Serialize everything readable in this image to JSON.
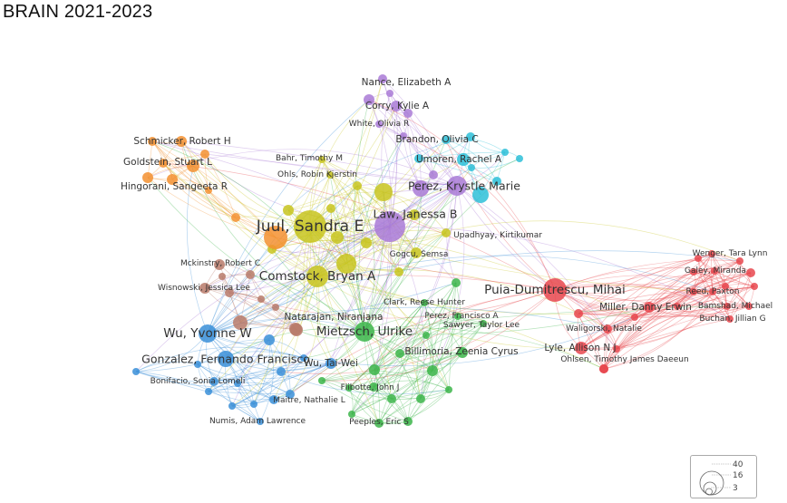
{
  "title": "BRAIN 2021-2023",
  "clusters": {
    "red": "#e8474d",
    "blue": "#3a8fd8",
    "green": "#3cb54a",
    "yellow": "#c8c41f",
    "purple": "#a97ad6",
    "cyan": "#2ec0d8",
    "orange": "#f39130",
    "brown": "#b97a6a"
  },
  "labels": [
    {
      "id": "juul",
      "text": "Juul, Sandra E",
      "cluster": "yellow",
      "size": "xl"
    },
    {
      "id": "puia",
      "text": "Puia-Dumitrescu, Mihai",
      "cluster": "red",
      "size": "lg"
    },
    {
      "id": "comstock",
      "text": "Comstock, Bryan A",
      "cluster": "yellow",
      "size": "lg"
    },
    {
      "id": "mietzsch",
      "text": "Mietzsch, Ulrike",
      "cluster": "green",
      "size": "lg"
    },
    {
      "id": "wu_yvonne",
      "text": "Wu, Yvonne W",
      "cluster": "blue",
      "size": "lg"
    },
    {
      "id": "gonzalez",
      "text": "Gonzalez, Fernando Francisco",
      "cluster": "blue",
      "size": "md"
    },
    {
      "id": "perez_krystle",
      "text": "Perez, Krystle Marie",
      "cluster": "purple",
      "size": "md"
    },
    {
      "id": "law",
      "text": "Law, Janessa B",
      "cluster": "purple",
      "size": "md"
    },
    {
      "id": "nance",
      "text": "Nance, Elizabeth A",
      "cluster": "purple",
      "size": "sm"
    },
    {
      "id": "corry",
      "text": "Corry, Kylie A",
      "cluster": "purple",
      "size": "sm"
    },
    {
      "id": "white",
      "text": "White, Olivia R",
      "cluster": "purple",
      "size": "xs"
    },
    {
      "id": "brandon",
      "text": "Brandon, Olivia C",
      "cluster": "cyan",
      "size": "sm"
    },
    {
      "id": "umoren",
      "text": "Umoren, Rachel A",
      "cluster": "cyan",
      "size": "sm"
    },
    {
      "id": "schmicker",
      "text": "Schmicker, Robert H",
      "cluster": "orange",
      "size": "sm"
    },
    {
      "id": "goldstein",
      "text": "Goldstein, Stuart L",
      "cluster": "orange",
      "size": "sm"
    },
    {
      "id": "hingorani",
      "text": "Hingorani, Sangeeta R",
      "cluster": "orange",
      "size": "sm"
    },
    {
      "id": "bahr",
      "text": "Bahr, Timothy M",
      "cluster": "yellow",
      "size": "xs"
    },
    {
      "id": "ohls",
      "text": "Ohls, Robin Kjerstin",
      "cluster": "yellow",
      "size": "xs"
    },
    {
      "id": "upadhyay",
      "text": "Upadhyay, Kirtikumar",
      "cluster": "yellow",
      "size": "xs"
    },
    {
      "id": "gogcu",
      "text": "Gogcu, Semsa",
      "cluster": "yellow",
      "size": "xs"
    },
    {
      "id": "mckinstry",
      "text": "Mckinstry, Robert C",
      "cluster": "brown",
      "size": "xs"
    },
    {
      "id": "wisnowski",
      "text": "Wisnowski, Jessica Lee",
      "cluster": "brown",
      "size": "xs"
    },
    {
      "id": "natarajan",
      "text": "Natarajan, Niranjana",
      "cluster": "brown",
      "size": "sm"
    },
    {
      "id": "clark",
      "text": "Clark, Reese Hunter",
      "cluster": "green",
      "size": "xs"
    },
    {
      "id": "perez_francisco",
      "text": "Perez, Francisco A",
      "cluster": "green",
      "size": "xs"
    },
    {
      "id": "sawyer",
      "text": "Sawyer, Taylor Lee",
      "cluster": "green",
      "size": "xs"
    },
    {
      "id": "billimoria",
      "text": "Billimoria, Zeenia Cyrus",
      "cluster": "green",
      "size": "sm"
    },
    {
      "id": "wu_taiwei",
      "text": "Wu, Tai-Wei",
      "cluster": "blue",
      "size": "sm"
    },
    {
      "id": "flibotte",
      "text": "Flibotte, John J",
      "cluster": "green",
      "size": "xs"
    },
    {
      "id": "bonifacio",
      "text": "Bonifacio, Sonia Lomeli",
      "cluster": "blue",
      "size": "xs"
    },
    {
      "id": "maitre",
      "text": "Maitre, Nathalie L",
      "cluster": "blue",
      "size": "xs"
    },
    {
      "id": "numis",
      "text": "Numis, Adam Lawrence",
      "cluster": "blue",
      "size": "xs"
    },
    {
      "id": "peeples",
      "text": "Peeples, Eric S",
      "cluster": "green",
      "size": "xs"
    },
    {
      "id": "miller",
      "text": "Miller, Danny Erwin",
      "cluster": "red",
      "size": "sm"
    },
    {
      "id": "waligorski",
      "text": "Waligorski, Natalie",
      "cluster": "red",
      "size": "xs"
    },
    {
      "id": "lyle",
      "text": "Lyle, Allison N J",
      "cluster": "red",
      "size": "sm"
    },
    {
      "id": "ohlsen",
      "text": "Ohlsen, Timothy James Daeeun",
      "cluster": "red",
      "size": "xs"
    },
    {
      "id": "wenger",
      "text": "Wenger, Tara Lynn",
      "cluster": "red",
      "size": "xs"
    },
    {
      "id": "galey",
      "text": "Galey, Miranda",
      "cluster": "red",
      "size": "xs"
    },
    {
      "id": "reed",
      "text": "Reed, Paxton",
      "cluster": "red",
      "size": "xs"
    },
    {
      "id": "bamshad",
      "text": "Bamshad, Michael",
      "cluster": "red",
      "size": "xs"
    },
    {
      "id": "buchan",
      "text": "Buchan, Jillian G",
      "cluster": "red",
      "size": "xs"
    }
  ],
  "legend": {
    "values": [
      "40",
      "16",
      "3"
    ]
  }
}
